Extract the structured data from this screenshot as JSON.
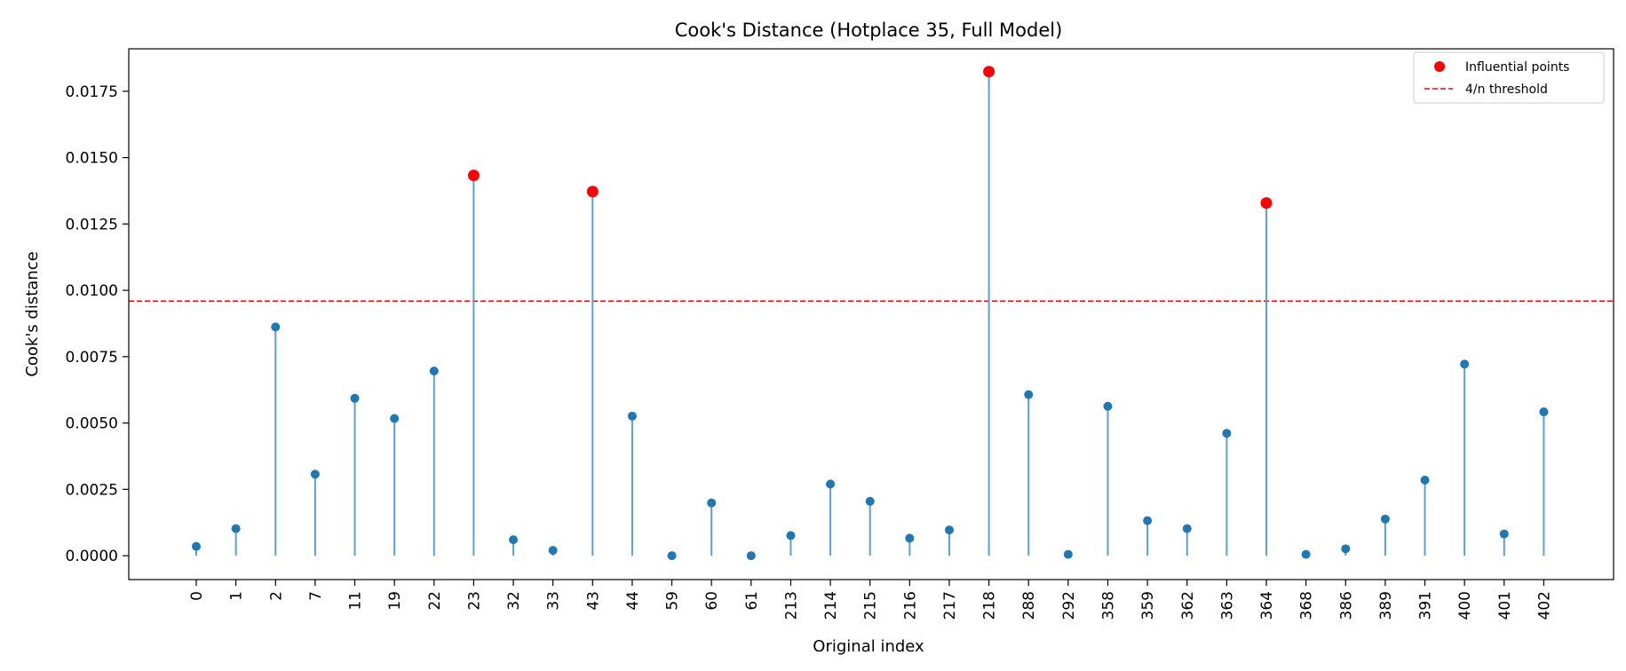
{
  "chart_data": {
    "type": "scatter",
    "title": "Cook's Distance (Hotplace 35, Full Model)",
    "xlabel": "Original index",
    "ylabel": "Cook's distance",
    "ylim": [
      -0.0009,
      0.0191
    ],
    "yticks": [
      "0.0000",
      "0.0025",
      "0.0050",
      "0.0075",
      "0.0100",
      "0.0125",
      "0.0150",
      "0.0175"
    ],
    "grid": false,
    "legend_position": "top-right",
    "categories": [
      "0",
      "1",
      "2",
      "7",
      "11",
      "19",
      "22",
      "23",
      "32",
      "33",
      "43",
      "44",
      "59",
      "60",
      "61",
      "213",
      "214",
      "215",
      "216",
      "217",
      "218",
      "288",
      "292",
      "358",
      "359",
      "362",
      "363",
      "364",
      "368",
      "386",
      "389",
      "391",
      "400",
      "401",
      "402"
    ],
    "values": [
      0.00035,
      0.00102,
      0.00862,
      0.00307,
      0.00593,
      0.00517,
      0.00696,
      0.01433,
      0.0006,
      0.0002,
      0.01372,
      0.00526,
      0.0,
      0.00199,
      0.0,
      0.00076,
      0.0027,
      0.00205,
      0.00066,
      0.00097,
      0.01824,
      0.00607,
      5e-05,
      0.00563,
      0.00132,
      0.00102,
      0.00461,
      0.01329,
      5e-05,
      0.00026,
      0.00138,
      0.00285,
      0.00722,
      0.00082,
      0.00542
    ],
    "influential": [
      "23",
      "43",
      "218",
      "364"
    ],
    "threshold": 0.00959,
    "series": [
      {
        "name": "Influential points",
        "color": "#ff0000"
      },
      {
        "name": "4/n threshold",
        "color": "#ff0000",
        "style": "dashed"
      }
    ],
    "point_color": "#1f77b4",
    "stem_color": "#5aa0d6"
  }
}
